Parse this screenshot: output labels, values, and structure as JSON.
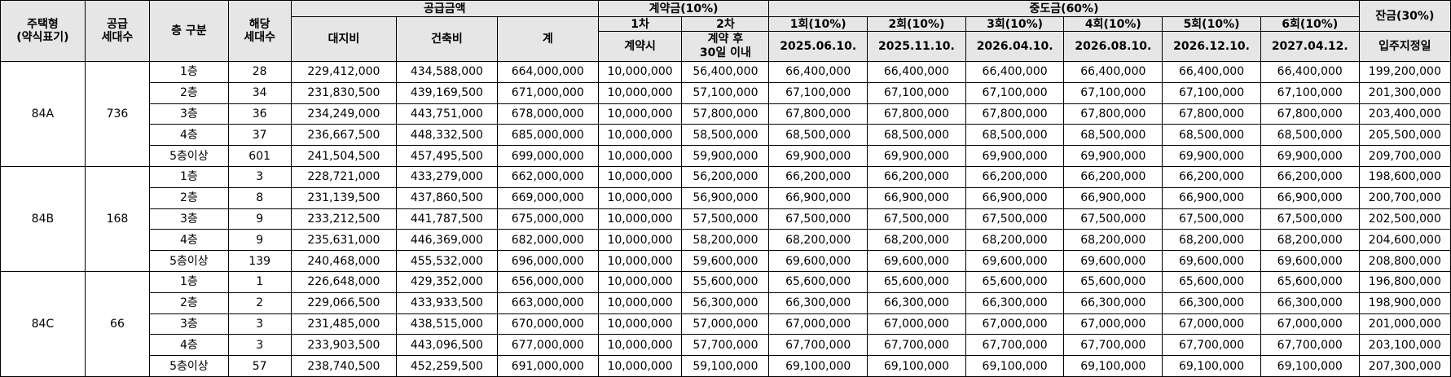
{
  "headers": {
    "type": "주택형\n(약식표기)",
    "supply": "공급\n세대수",
    "floor": "층 구분",
    "units": "해당\n세대수",
    "price_group": "공급금액",
    "land": "대지비",
    "building": "건축비",
    "total": "계",
    "deposit_group": "계약금(10%)",
    "deposit1": "1차",
    "deposit1_when": "계약시",
    "deposit2": "2차",
    "deposit2_when": "계약 후\n30일 이내",
    "middle_group": "중도금(60%)",
    "middle": [
      {
        "label": "1회(10%)",
        "date": "2025.06.10."
      },
      {
        "label": "2회(10%)",
        "date": "2025.11.10."
      },
      {
        "label": "3회(10%)",
        "date": "2026.04.10."
      },
      {
        "label": "4회(10%)",
        "date": "2026.08.10."
      },
      {
        "label": "5회(10%)",
        "date": "2026.12.10."
      },
      {
        "label": "6회(10%)",
        "date": "2027.04.12."
      }
    ],
    "balance": "잔금(30%)",
    "balance_when": "입주지정일"
  },
  "groups": [
    {
      "type": "84A",
      "supply": "736",
      "rows": [
        {
          "floor": "1층",
          "units": "28",
          "land": "229,412,000",
          "building": "434,588,000",
          "total": "664,000,000",
          "d1": "10,000,000",
          "d2": "56,400,000",
          "mid": "66,400,000",
          "balance": "199,200,000"
        },
        {
          "floor": "2층",
          "units": "34",
          "land": "231,830,500",
          "building": "439,169,500",
          "total": "671,000,000",
          "d1": "10,000,000",
          "d2": "57,100,000",
          "mid": "67,100,000",
          "balance": "201,300,000"
        },
        {
          "floor": "3층",
          "units": "36",
          "land": "234,249,000",
          "building": "443,751,000",
          "total": "678,000,000",
          "d1": "10,000,000",
          "d2": "57,800,000",
          "mid": "67,800,000",
          "balance": "203,400,000"
        },
        {
          "floor": "4층",
          "units": "37",
          "land": "236,667,500",
          "building": "448,332,500",
          "total": "685,000,000",
          "d1": "10,000,000",
          "d2": "58,500,000",
          "mid": "68,500,000",
          "balance": "205,500,000"
        },
        {
          "floor": "5층이상",
          "units": "601",
          "land": "241,504,500",
          "building": "457,495,500",
          "total": "699,000,000",
          "d1": "10,000,000",
          "d2": "59,900,000",
          "mid": "69,900,000",
          "balance": "209,700,000"
        }
      ]
    },
    {
      "type": "84B",
      "supply": "168",
      "rows": [
        {
          "floor": "1층",
          "units": "3",
          "land": "228,721,000",
          "building": "433,279,000",
          "total": "662,000,000",
          "d1": "10,000,000",
          "d2": "56,200,000",
          "mid": "66,200,000",
          "balance": "198,600,000"
        },
        {
          "floor": "2층",
          "units": "8",
          "land": "231,139,500",
          "building": "437,860,500",
          "total": "669,000,000",
          "d1": "10,000,000",
          "d2": "56,900,000",
          "mid": "66,900,000",
          "balance": "200,700,000"
        },
        {
          "floor": "3층",
          "units": "9",
          "land": "233,212,500",
          "building": "441,787,500",
          "total": "675,000,000",
          "d1": "10,000,000",
          "d2": "57,500,000",
          "mid": "67,500,000",
          "balance": "202,500,000"
        },
        {
          "floor": "4층",
          "units": "9",
          "land": "235,631,000",
          "building": "446,369,000",
          "total": "682,000,000",
          "d1": "10,000,000",
          "d2": "58,200,000",
          "mid": "68,200,000",
          "balance": "204,600,000"
        },
        {
          "floor": "5층이상",
          "units": "139",
          "land": "240,468,000",
          "building": "455,532,000",
          "total": "696,000,000",
          "d1": "10,000,000",
          "d2": "59,600,000",
          "mid": "69,600,000",
          "balance": "208,800,000"
        }
      ]
    },
    {
      "type": "84C",
      "supply": "66",
      "rows": [
        {
          "floor": "1층",
          "units": "1",
          "land": "226,648,000",
          "building": "429,352,000",
          "total": "656,000,000",
          "d1": "10,000,000",
          "d2": "55,600,000",
          "mid": "65,600,000",
          "balance": "196,800,000"
        },
        {
          "floor": "2층",
          "units": "2",
          "land": "229,066,500",
          "building": "433,933,500",
          "total": "663,000,000",
          "d1": "10,000,000",
          "d2": "56,300,000",
          "mid": "66,300,000",
          "balance": "198,900,000"
        },
        {
          "floor": "3층",
          "units": "3",
          "land": "231,485,000",
          "building": "438,515,000",
          "total": "670,000,000",
          "d1": "10,000,000",
          "d2": "57,000,000",
          "mid": "67,000,000",
          "balance": "201,000,000"
        },
        {
          "floor": "4층",
          "units": "3",
          "land": "233,903,500",
          "building": "443,096,500",
          "total": "677,000,000",
          "d1": "10,000,000",
          "d2": "57,700,000",
          "mid": "67,700,000",
          "balance": "203,100,000"
        },
        {
          "floor": "5층이상",
          "units": "57",
          "land": "238,740,500",
          "building": "452,259,500",
          "total": "691,000,000",
          "d1": "10,000,000",
          "d2": "59,100,000",
          "mid": "69,100,000",
          "balance": "207,300,000"
        }
      ]
    }
  ]
}
